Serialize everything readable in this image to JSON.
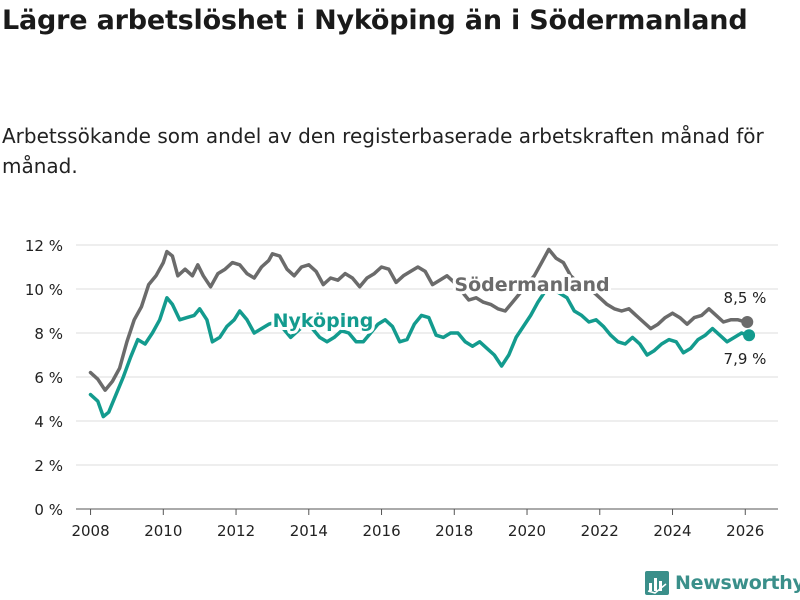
{
  "header": {
    "title": "Lägre arbetslöshet i Nyköping än i Södermanland",
    "subtitle": "Arbetssökande som andel av den registerbaserade arbetskraften månad för månad."
  },
  "brand": {
    "name": "Newsworthy"
  },
  "colors": {
    "nykoping": "#139b8e",
    "sodermanland": "#6b6b6b",
    "grid": "#dddddd",
    "text": "#222222"
  },
  "chart_data": {
    "type": "line",
    "title": "Lägre arbetslöshet i Nyköping än i Södermanland",
    "xlabel": "",
    "ylabel": "",
    "xlim": [
      2007.6,
      2026.9
    ],
    "ylim": [
      0,
      12
    ],
    "xticks": [
      2008,
      2010,
      2012,
      2014,
      2016,
      2018,
      2020,
      2022,
      2024,
      2026
    ],
    "xtick_labels": [
      "2008",
      "2010",
      "2012",
      "2014",
      "2016",
      "2018",
      "2020",
      "2022",
      "2024",
      "2026"
    ],
    "yticks": [
      0,
      2,
      4,
      6,
      8,
      10,
      12
    ],
    "ytick_labels": [
      "0 %",
      "2 %",
      "4 %",
      "6 %",
      "8 %",
      "10 %",
      "12 %"
    ],
    "grid": true,
    "series": [
      {
        "name": "Södermanland",
        "label": "Södermanland",
        "end_label": "8,5 %",
        "points": [
          [
            2008.0,
            6.2
          ],
          [
            2008.2,
            5.9
          ],
          [
            2008.4,
            5.4
          ],
          [
            2008.6,
            5.8
          ],
          [
            2008.8,
            6.4
          ],
          [
            2009.0,
            7.6
          ],
          [
            2009.2,
            8.6
          ],
          [
            2009.4,
            9.2
          ],
          [
            2009.6,
            10.2
          ],
          [
            2009.8,
            10.6
          ],
          [
            2010.0,
            11.2
          ],
          [
            2010.1,
            11.7
          ],
          [
            2010.25,
            11.5
          ],
          [
            2010.4,
            10.6
          ],
          [
            2010.6,
            10.9
          ],
          [
            2010.8,
            10.6
          ],
          [
            2010.95,
            11.1
          ],
          [
            2011.1,
            10.6
          ],
          [
            2011.3,
            10.1
          ],
          [
            2011.5,
            10.7
          ],
          [
            2011.7,
            10.9
          ],
          [
            2011.9,
            11.2
          ],
          [
            2012.1,
            11.1
          ],
          [
            2012.3,
            10.7
          ],
          [
            2012.5,
            10.5
          ],
          [
            2012.7,
            11.0
          ],
          [
            2012.9,
            11.3
          ],
          [
            2013.0,
            11.6
          ],
          [
            2013.2,
            11.5
          ],
          [
            2013.4,
            10.9
          ],
          [
            2013.6,
            10.6
          ],
          [
            2013.8,
            11.0
          ],
          [
            2014.0,
            11.1
          ],
          [
            2014.2,
            10.8
          ],
          [
            2014.4,
            10.2
          ],
          [
            2014.6,
            10.5
          ],
          [
            2014.8,
            10.4
          ],
          [
            2015.0,
            10.7
          ],
          [
            2015.2,
            10.5
          ],
          [
            2015.4,
            10.1
          ],
          [
            2015.6,
            10.5
          ],
          [
            2015.8,
            10.7
          ],
          [
            2016.0,
            11.0
          ],
          [
            2016.2,
            10.9
          ],
          [
            2016.4,
            10.3
          ],
          [
            2016.6,
            10.6
          ],
          [
            2016.8,
            10.8
          ],
          [
            2017.0,
            11.0
          ],
          [
            2017.2,
            10.8
          ],
          [
            2017.4,
            10.2
          ],
          [
            2017.6,
            10.4
          ],
          [
            2017.8,
            10.6
          ],
          [
            2018.0,
            10.3
          ],
          [
            2018.2,
            9.9
          ],
          [
            2018.4,
            9.5
          ],
          [
            2018.6,
            9.6
          ],
          [
            2018.8,
            9.4
          ],
          [
            2019.0,
            9.3
          ],
          [
            2019.2,
            9.1
          ],
          [
            2019.4,
            9.0
          ],
          [
            2019.6,
            9.4
          ],
          [
            2019.8,
            9.8
          ],
          [
            2020.0,
            10.2
          ],
          [
            2020.2,
            10.6
          ],
          [
            2020.4,
            11.2
          ],
          [
            2020.6,
            11.8
          ],
          [
            2020.8,
            11.4
          ],
          [
            2021.0,
            11.2
          ],
          [
            2021.2,
            10.6
          ],
          [
            2021.4,
            10.3
          ],
          [
            2021.6,
            10.0
          ],
          [
            2021.8,
            9.9
          ],
          [
            2022.0,
            9.6
          ],
          [
            2022.2,
            9.3
          ],
          [
            2022.4,
            9.1
          ],
          [
            2022.6,
            9.0
          ],
          [
            2022.8,
            9.1
          ],
          [
            2023.0,
            8.8
          ],
          [
            2023.2,
            8.5
          ],
          [
            2023.4,
            8.2
          ],
          [
            2023.6,
            8.4
          ],
          [
            2023.8,
            8.7
          ],
          [
            2024.0,
            8.9
          ],
          [
            2024.2,
            8.7
          ],
          [
            2024.4,
            8.4
          ],
          [
            2024.6,
            8.7
          ],
          [
            2024.8,
            8.8
          ],
          [
            2025.0,
            9.1
          ],
          [
            2025.2,
            8.8
          ],
          [
            2025.4,
            8.5
          ],
          [
            2025.6,
            8.6
          ],
          [
            2025.8,
            8.6
          ],
          [
            2026.0,
            8.5
          ]
        ]
      },
      {
        "name": "Nyköping",
        "label": "Nyköping",
        "end_label": "7,9 %",
        "points": [
          [
            2008.0,
            5.2
          ],
          [
            2008.2,
            4.9
          ],
          [
            2008.35,
            4.2
          ],
          [
            2008.5,
            4.4
          ],
          [
            2008.7,
            5.2
          ],
          [
            2008.9,
            6.0
          ],
          [
            2009.1,
            6.9
          ],
          [
            2009.3,
            7.7
          ],
          [
            2009.5,
            7.5
          ],
          [
            2009.7,
            8.0
          ],
          [
            2009.9,
            8.6
          ],
          [
            2010.1,
            9.6
          ],
          [
            2010.25,
            9.3
          ],
          [
            2010.45,
            8.6
          ],
          [
            2010.65,
            8.7
          ],
          [
            2010.85,
            8.8
          ],
          [
            2011.0,
            9.1
          ],
          [
            2011.2,
            8.6
          ],
          [
            2011.35,
            7.6
          ],
          [
            2011.55,
            7.8
          ],
          [
            2011.75,
            8.3
          ],
          [
            2011.95,
            8.6
          ],
          [
            2012.1,
            9.0
          ],
          [
            2012.3,
            8.6
          ],
          [
            2012.5,
            8.0
          ],
          [
            2012.7,
            8.2
          ],
          [
            2012.9,
            8.4
          ],
          [
            2013.1,
            8.5
          ],
          [
            2013.3,
            8.2
          ],
          [
            2013.5,
            7.8
          ],
          [
            2013.7,
            8.1
          ],
          [
            2013.9,
            8.4
          ],
          [
            2014.1,
            8.2
          ],
          [
            2014.3,
            7.8
          ],
          [
            2014.5,
            7.6
          ],
          [
            2014.7,
            7.8
          ],
          [
            2014.9,
            8.1
          ],
          [
            2015.1,
            8.0
          ],
          [
            2015.3,
            7.6
          ],
          [
            2015.5,
            7.6
          ],
          [
            2015.7,
            8.0
          ],
          [
            2015.9,
            8.4
          ],
          [
            2016.1,
            8.6
          ],
          [
            2016.3,
            8.3
          ],
          [
            2016.5,
            7.6
          ],
          [
            2016.7,
            7.7
          ],
          [
            2016.9,
            8.4
          ],
          [
            2017.1,
            8.8
          ],
          [
            2017.3,
            8.7
          ],
          [
            2017.5,
            7.9
          ],
          [
            2017.7,
            7.8
          ],
          [
            2017.9,
            8.0
          ],
          [
            2018.1,
            8.0
          ],
          [
            2018.3,
            7.6
          ],
          [
            2018.5,
            7.4
          ],
          [
            2018.7,
            7.6
          ],
          [
            2018.9,
            7.3
          ],
          [
            2019.1,
            7.0
          ],
          [
            2019.3,
            6.5
          ],
          [
            2019.5,
            7.0
          ],
          [
            2019.7,
            7.8
          ],
          [
            2019.9,
            8.3
          ],
          [
            2020.1,
            8.8
          ],
          [
            2020.3,
            9.4
          ],
          [
            2020.5,
            9.9
          ],
          [
            2020.7,
            10.0
          ],
          [
            2020.9,
            9.8
          ],
          [
            2021.1,
            9.6
          ],
          [
            2021.3,
            9.0
          ],
          [
            2021.5,
            8.8
          ],
          [
            2021.7,
            8.5
          ],
          [
            2021.9,
            8.6
          ],
          [
            2022.1,
            8.3
          ],
          [
            2022.3,
            7.9
          ],
          [
            2022.5,
            7.6
          ],
          [
            2022.7,
            7.5
          ],
          [
            2022.9,
            7.8
          ],
          [
            2023.1,
            7.5
          ],
          [
            2023.3,
            7.0
          ],
          [
            2023.5,
            7.2
          ],
          [
            2023.7,
            7.5
          ],
          [
            2023.9,
            7.7
          ],
          [
            2024.1,
            7.6
          ],
          [
            2024.3,
            7.1
          ],
          [
            2024.5,
            7.3
          ],
          [
            2024.7,
            7.7
          ],
          [
            2024.9,
            7.9
          ],
          [
            2025.1,
            8.2
          ],
          [
            2025.3,
            7.9
          ],
          [
            2025.5,
            7.6
          ],
          [
            2025.7,
            7.8
          ],
          [
            2025.9,
            8.0
          ],
          [
            2026.05,
            7.9
          ]
        ]
      }
    ]
  }
}
